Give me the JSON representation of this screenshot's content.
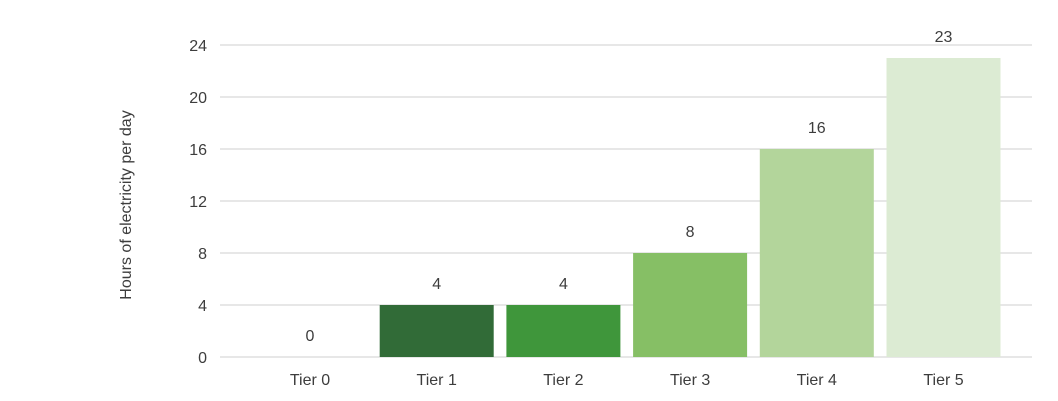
{
  "chart_data": {
    "type": "bar",
    "categories": [
      "Tier 0",
      "Tier 1",
      "Tier 2",
      "Tier 3",
      "Tier 4",
      "Tier 5"
    ],
    "values": [
      0,
      4,
      4,
      8,
      16,
      23
    ],
    "data_labels": [
      "0",
      "4",
      "4",
      "8",
      "16",
      "23"
    ],
    "bar_colors": [
      "#ffffff",
      "#316b37",
      "#3f963b",
      "#86bf65",
      "#b3d59b",
      "#dcebd3"
    ],
    "title": "",
    "xlabel": "",
    "ylabel": "Hours of electricity per day",
    "ylim": [
      0,
      24
    ],
    "yticks": [
      0,
      4,
      8,
      12,
      16,
      20,
      24
    ],
    "ytick_labels": [
      "0",
      "4",
      "8",
      "12",
      "16",
      "20",
      "24"
    ],
    "grid": true,
    "legend": "none"
  }
}
